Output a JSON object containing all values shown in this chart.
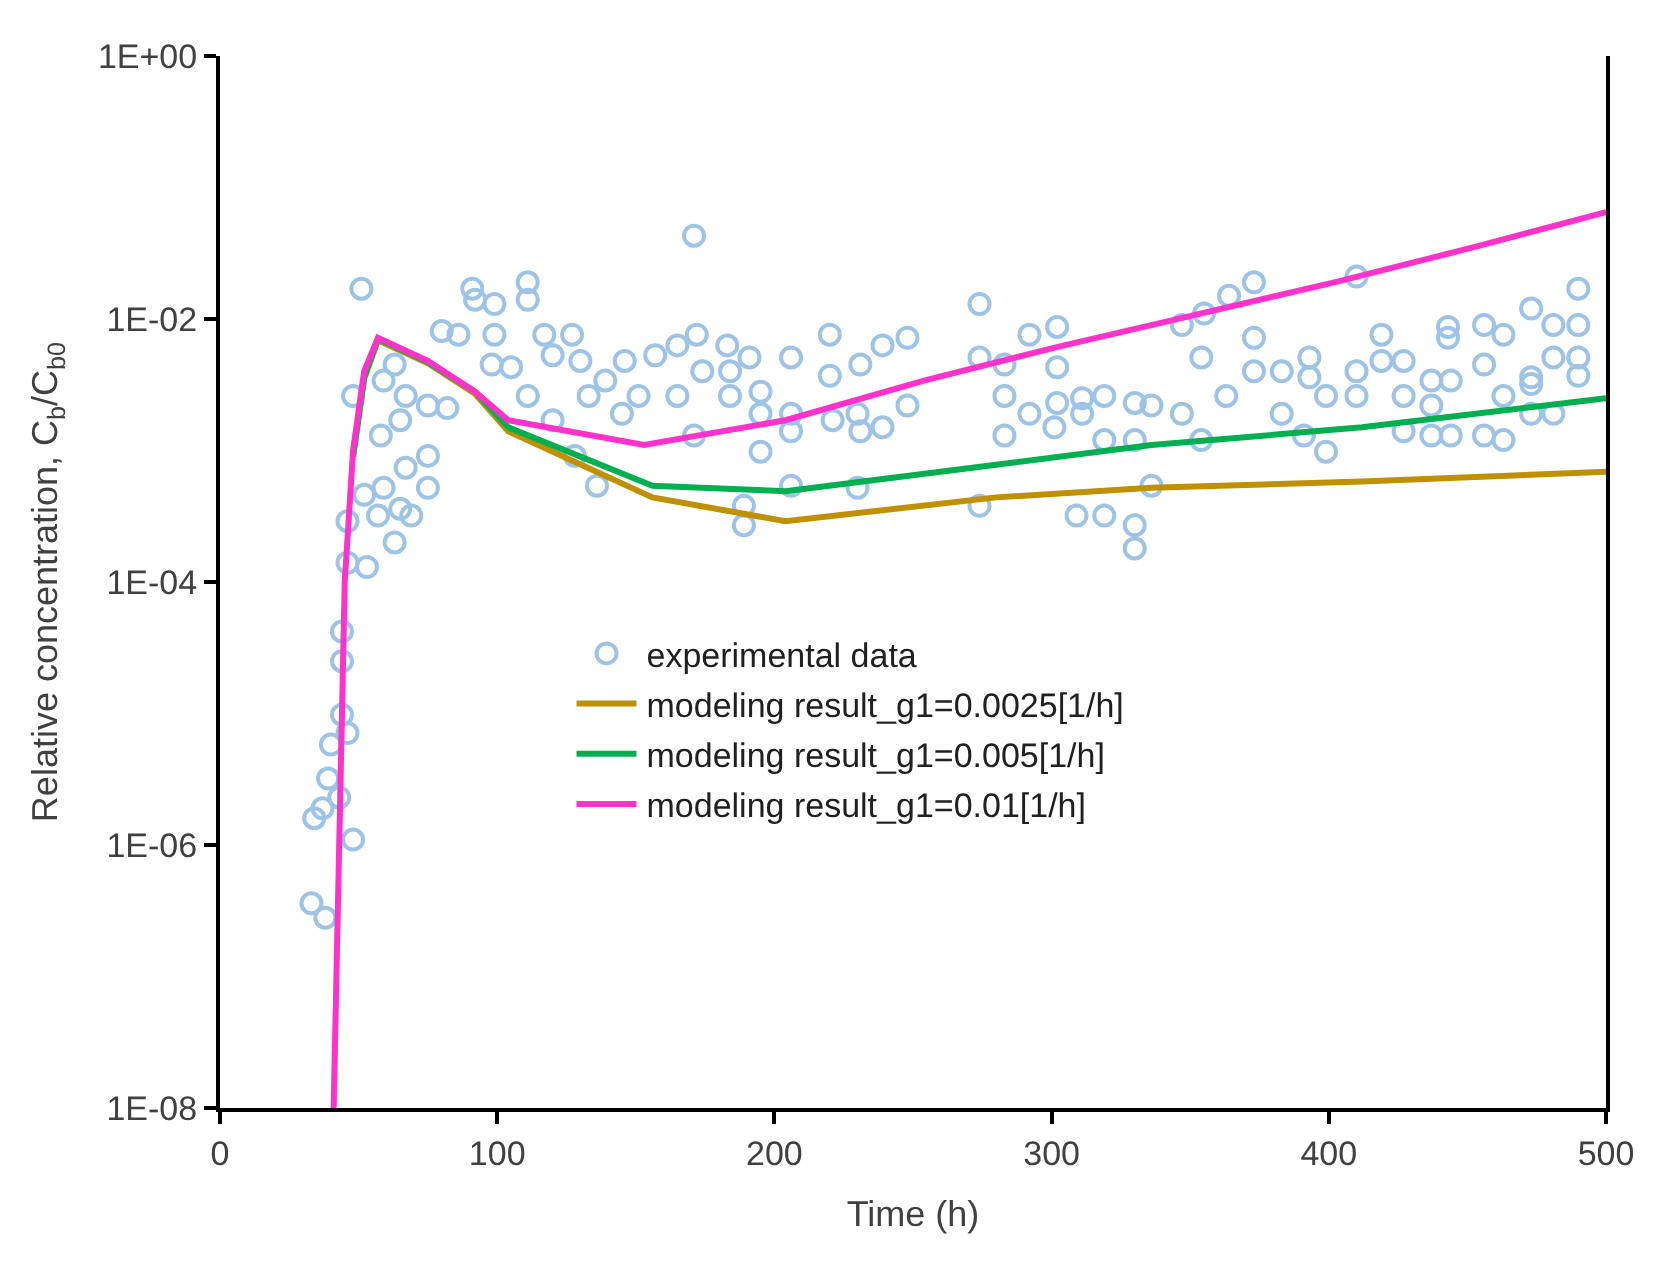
{
  "chart_data": {
    "type": "scatter",
    "xlabel": "Time (h)",
    "ylabel": "Relative concentration, C$_{b}$/C$_{b0}$",
    "log": "y",
    "grid": false,
    "legend": "right",
    "xlim": [
      0,
      500
    ],
    "xticks": [
      0,
      100,
      200,
      300,
      400,
      500
    ],
    "ylim": [
      1e-08,
      1
    ],
    "yticks": [
      {
        "value": 1e-08,
        "label": "1E-08"
      },
      {
        "value": 1e-06,
        "label": "1E-06"
      },
      {
        "value": 0.0001,
        "label": "1E-04"
      },
      {
        "value": 0.01,
        "label": "1E-02"
      },
      {
        "value": 1,
        "label": "1E+00"
      }
    ],
    "series": [
      {
        "name": "experimental data",
        "marker": "circle",
        "color": "#9dc3e6",
        "x": [
          33,
          38,
          44,
          44,
          44,
          46,
          40,
          39,
          34,
          37,
          43,
          48,
          51,
          48,
          46,
          46,
          53,
          52,
          59,
          57,
          63,
          65,
          69,
          67,
          75,
          75,
          65,
          58,
          59,
          63,
          67,
          75,
          80,
          86,
          82,
          91,
          92,
          99,
          111,
          111,
          99,
          98,
          111,
          105,
          117,
          120,
          127,
          130,
          133,
          139,
          146,
          145,
          151,
          157,
          136,
          120,
          128,
          171,
          165,
          172,
          183,
          174,
          184,
          165,
          184,
          195,
          191,
          171,
          195,
          195,
          189,
          189,
          206,
          206,
          206,
          206,
          220,
          220,
          221,
          231,
          230,
          231,
          230,
          239,
          248,
          248,
          239,
          274,
          274,
          274,
          283,
          283,
          283,
          292,
          292,
          302,
          302,
          302,
          301,
          309,
          311,
          311,
          319,
          319,
          319,
          330,
          330,
          330,
          330,
          336,
          336,
          347,
          347,
          354,
          354,
          355,
          364,
          373,
          373,
          363,
          373,
          383,
          383,
          393,
          393,
          391,
          399,
          399,
          410,
          410,
          410,
          419,
          419,
          427,
          427,
          427,
          437,
          437,
          437,
          443,
          443,
          444,
          444,
          456,
          456,
          456,
          463,
          463,
          463,
          473,
          473,
          473,
          481,
          481,
          481,
          490,
          490,
          490,
          490,
          473
        ],
        "values": [
          3.6e-07,
          2.8e-07,
          4.2e-05,
          2.5e-05,
          9.8e-06,
          7.1e-06,
          5.8e-06,
          3.2e-06,
          1.6e-06,
          1.9e-06,
          2.3e-06,
          1.1e-06,
          0.017,
          0.0026,
          0.00029,
          0.00014,
          0.00013,
          0.00046,
          0.00052,
          0.00032,
          0.0002,
          0.00036,
          0.00032,
          0.00074,
          0.00052,
          0.00091,
          0.0017,
          0.0013,
          0.0034,
          0.0045,
          0.0026,
          0.0022,
          0.0081,
          0.0076,
          0.0021,
          0.017,
          0.014,
          0.013,
          0.019,
          0.014,
          0.0076,
          0.0045,
          0.0026,
          0.0043,
          0.0076,
          0.0053,
          0.0076,
          0.0048,
          0.0026,
          0.0034,
          0.0048,
          0.0019,
          0.0026,
          0.0053,
          0.00054,
          0.0017,
          0.00091,
          0.043,
          0.0063,
          0.0076,
          0.0063,
          0.004,
          0.004,
          0.0026,
          0.0026,
          0.0028,
          0.0051,
          0.0013,
          0.0019,
          0.00098,
          0.00027,
          0.00038,
          0.0051,
          0.0019,
          0.0014,
          0.00054,
          0.0076,
          0.0037,
          0.0017,
          0.0045,
          0.0019,
          0.0014,
          0.00052,
          0.0063,
          0.0072,
          0.0022,
          0.0015,
          0.013,
          0.0051,
          0.00038,
          0.0045,
          0.0026,
          0.0013,
          0.0076,
          0.0019,
          0.0087,
          0.0043,
          0.0023,
          0.0015,
          0.00032,
          0.0025,
          0.0019,
          0.0026,
          0.0012,
          0.00032,
          0.0023,
          0.0012,
          0.00027,
          0.00018,
          0.00054,
          0.0022,
          0.0019,
          0.009,
          0.0051,
          0.0012,
          0.011,
          0.015,
          0.019,
          0.0072,
          0.0026,
          0.004,
          0.004,
          0.0019,
          0.0051,
          0.0036,
          0.0013,
          0.0026,
          0.00098,
          0.021,
          0.004,
          0.0026,
          0.0076,
          0.0048,
          0.0048,
          0.0026,
          0.0014,
          0.0034,
          0.0022,
          0.0013,
          0.0087,
          0.0072,
          0.0034,
          0.0013,
          0.009,
          0.0045,
          0.0013,
          0.0076,
          0.0026,
          0.0012,
          0.012,
          0.0032,
          0.0019,
          0.009,
          0.0051,
          0.0019,
          0.017,
          0.009,
          0.0051,
          0.0037,
          0.0036
        ]
      },
      {
        "name": "modeling result_g1=0.0025[1/h]",
        "type": "line",
        "marker": "none",
        "color": "#bf9000",
        "x": [
          48,
          52,
          57,
          75,
          92,
          104,
          156,
          204,
          280,
          336,
          412,
          500
        ],
        "values": [
          0.0009,
          0.0035,
          0.0069,
          0.0046,
          0.0027,
          0.0014,
          0.00044,
          0.00029,
          0.00044,
          0.00052,
          0.00058,
          0.00069
        ]
      },
      {
        "name": "modeling result_g1=0.005[1/h]",
        "type": "line",
        "marker": "none",
        "color": "#00b050",
        "x": [
          48,
          52,
          57,
          75,
          92,
          104,
          156,
          204,
          280,
          336,
          412,
          500
        ],
        "values": [
          0.0009,
          0.0036,
          0.0071,
          0.0047,
          0.0028,
          0.0015,
          0.00054,
          0.00049,
          0.00078,
          0.0011,
          0.0015,
          0.0025
        ]
      },
      {
        "name": "modeling result_g1=0.01[1/h]",
        "type": "line",
        "marker": "none",
        "color": "#ff33cc",
        "x": [
          41,
          43,
          45,
          48,
          52,
          57,
          75,
          92,
          104,
          153,
          204,
          254,
          303,
          341,
          402,
          452,
          500
        ],
        "values": [
          1e-08,
          1e-06,
          0.0001,
          0.001,
          0.004,
          0.0072,
          0.0048,
          0.0028,
          0.0017,
          0.0011,
          0.0017,
          0.0034,
          0.0062,
          0.0095,
          0.019,
          0.035,
          0.065
        ]
      }
    ]
  }
}
